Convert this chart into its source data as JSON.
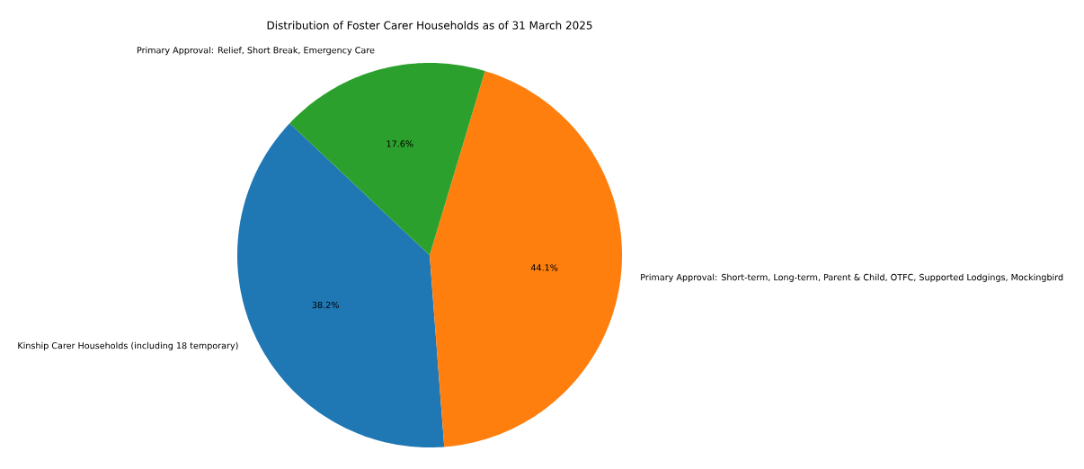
{
  "chart_data": {
    "type": "pie",
    "title": "Distribution of Foster Carer Households as of 31 March 2025",
    "categories": [
      "Kinship Carer Households (including 18 temporary)",
      "Primary Approval: Short-term, Long-term, Parent & Child, OTFC, Supported Lodgings, Mockingbird",
      "Primary Approval: Relief, Short Break, Emergency Care"
    ],
    "values": [
      38.2,
      44.1,
      17.6
    ],
    "colors": [
      "#1f77b4",
      "#ff7f0e",
      "#2ca02c"
    ],
    "value_labels": [
      "38.2%",
      "44.1%",
      "17.6%"
    ]
  }
}
